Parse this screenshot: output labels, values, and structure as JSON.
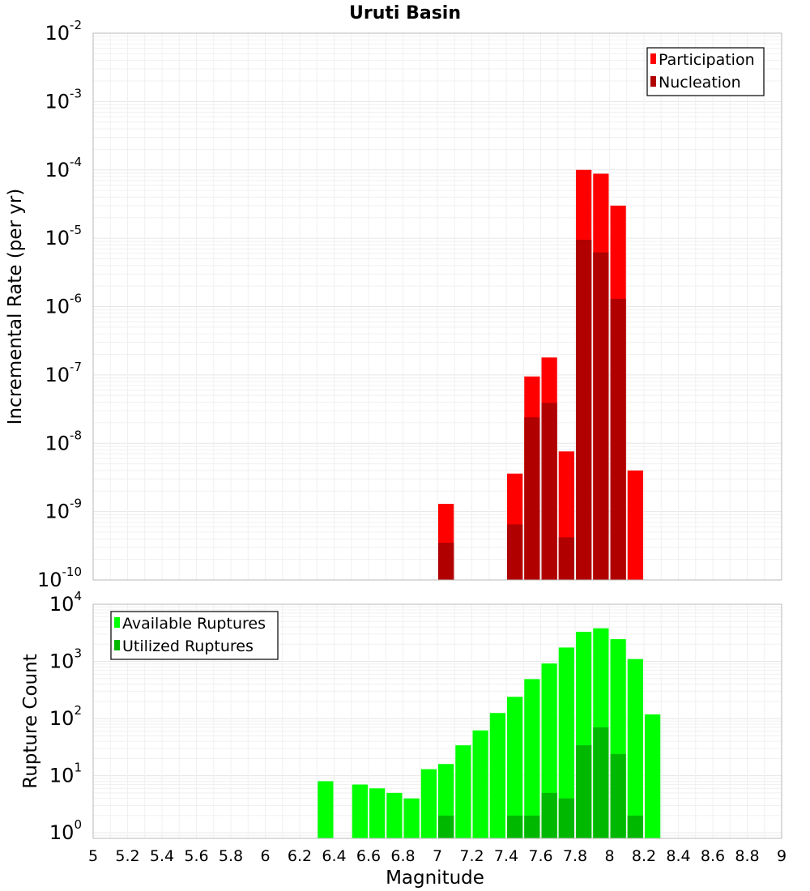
{
  "chart_data": [
    {
      "type": "bar",
      "title": "Uruti Basin",
      "xlabel": "",
      "ylabel": "Incremental Rate (per yr)",
      "yscale": "log",
      "ylim": [
        1e-10,
        0.01
      ],
      "xlim": [
        5,
        9
      ],
      "bar_width": 0.1,
      "ytick_labels": [
        {
          "base": "10",
          "exp": "-10",
          "value": 1e-10
        },
        {
          "base": "10",
          "exp": "-9",
          "value": 1e-09
        },
        {
          "base": "10",
          "exp": "-8",
          "value": 1e-08
        },
        {
          "base": "10",
          "exp": "-7",
          "value": 1e-07
        },
        {
          "base": "10",
          "exp": "-6",
          "value": 1e-06
        },
        {
          "base": "10",
          "exp": "-5",
          "value": 1e-05
        },
        {
          "base": "10",
          "exp": "-4",
          "value": 0.0001
        },
        {
          "base": "10",
          "exp": "-3",
          "value": 0.001
        },
        {
          "base": "10",
          "exp": "-2",
          "value": 0.01
        }
      ],
      "legend_position": "top-right",
      "grid": true,
      "series": [
        {
          "name": "Participation",
          "color": "#ff0000",
          "points": [
            {
              "x": 7.05,
              "y": 1.3e-09
            },
            {
              "x": 7.45,
              "y": 3.6e-09
            },
            {
              "x": 7.55,
              "y": 9.5e-08
            },
            {
              "x": 7.65,
              "y": 1.8e-07
            },
            {
              "x": 7.75,
              "y": 7.6e-09
            },
            {
              "x": 7.85,
              "y": 0.0001
            },
            {
              "x": 7.95,
              "y": 8.8e-05
            },
            {
              "x": 8.05,
              "y": 3e-05
            },
            {
              "x": 8.15,
              "y": 4e-09
            }
          ]
        },
        {
          "name": "Nucleation",
          "color": "#b00000",
          "points": [
            {
              "x": 7.05,
              "y": 3.5e-10
            },
            {
              "x": 7.45,
              "y": 6.5e-10
            },
            {
              "x": 7.55,
              "y": 2.4e-08
            },
            {
              "x": 7.65,
              "y": 3.9e-08
            },
            {
              "x": 7.75,
              "y": 4.2e-10
            },
            {
              "x": 7.85,
              "y": 9.5e-06
            },
            {
              "x": 7.95,
              "y": 6.2e-06
            },
            {
              "x": 8.05,
              "y": 1.3e-06
            }
          ]
        }
      ]
    },
    {
      "type": "bar",
      "title": "",
      "xlabel": "Magnitude",
      "ylabel": "Rupture Count",
      "yscale": "log",
      "ylim": [
        0.8,
        10000
      ],
      "xlim": [
        5,
        9
      ],
      "bar_width": 0.1,
      "xtick_labels": [
        "5",
        "5.2",
        "5.4",
        "5.6",
        "5.8",
        "6",
        "6.2",
        "6.4",
        "6.6",
        "6.8",
        "7",
        "7.2",
        "7.4",
        "7.6",
        "7.8",
        "8",
        "8.2",
        "8.4",
        "8.6",
        "8.8",
        "9"
      ],
      "ytick_labels": [
        {
          "base": "10",
          "exp": "0",
          "value": 1
        },
        {
          "base": "10",
          "exp": "1",
          "value": 10
        },
        {
          "base": "10",
          "exp": "2",
          "value": 100
        },
        {
          "base": "10",
          "exp": "3",
          "value": 1000
        },
        {
          "base": "10",
          "exp": "4",
          "value": 10000
        }
      ],
      "legend_position": "top-left",
      "grid": true,
      "series": [
        {
          "name": "Available Ruptures",
          "color": "#00ff00",
          "points": [
            {
              "x": 6.35,
              "y": 8
            },
            {
              "x": 6.55,
              "y": 7
            },
            {
              "x": 6.65,
              "y": 6
            },
            {
              "x": 6.75,
              "y": 5
            },
            {
              "x": 6.85,
              "y": 4
            },
            {
              "x": 6.95,
              "y": 13
            },
            {
              "x": 7.05,
              "y": 16
            },
            {
              "x": 7.15,
              "y": 34
            },
            {
              "x": 7.25,
              "y": 62
            },
            {
              "x": 7.35,
              "y": 125
            },
            {
              "x": 7.45,
              "y": 240
            },
            {
              "x": 7.55,
              "y": 490
            },
            {
              "x": 7.65,
              "y": 920
            },
            {
              "x": 7.75,
              "y": 1750
            },
            {
              "x": 7.85,
              "y": 3300
            },
            {
              "x": 7.95,
              "y": 3800
            },
            {
              "x": 8.05,
              "y": 2450
            },
            {
              "x": 8.15,
              "y": 1100
            },
            {
              "x": 8.25,
              "y": 118
            }
          ]
        },
        {
          "name": "Utilized Ruptures",
          "color": "#00b800",
          "points": [
            {
              "x": 7.05,
              "y": 2
            },
            {
              "x": 7.45,
              "y": 2
            },
            {
              "x": 7.55,
              "y": 2
            },
            {
              "x": 7.65,
              "y": 5
            },
            {
              "x": 7.75,
              "y": 4
            },
            {
              "x": 7.85,
              "y": 34
            },
            {
              "x": 7.95,
              "y": 70
            },
            {
              "x": 8.05,
              "y": 24
            },
            {
              "x": 8.15,
              "y": 2
            }
          ]
        }
      ]
    }
  ]
}
